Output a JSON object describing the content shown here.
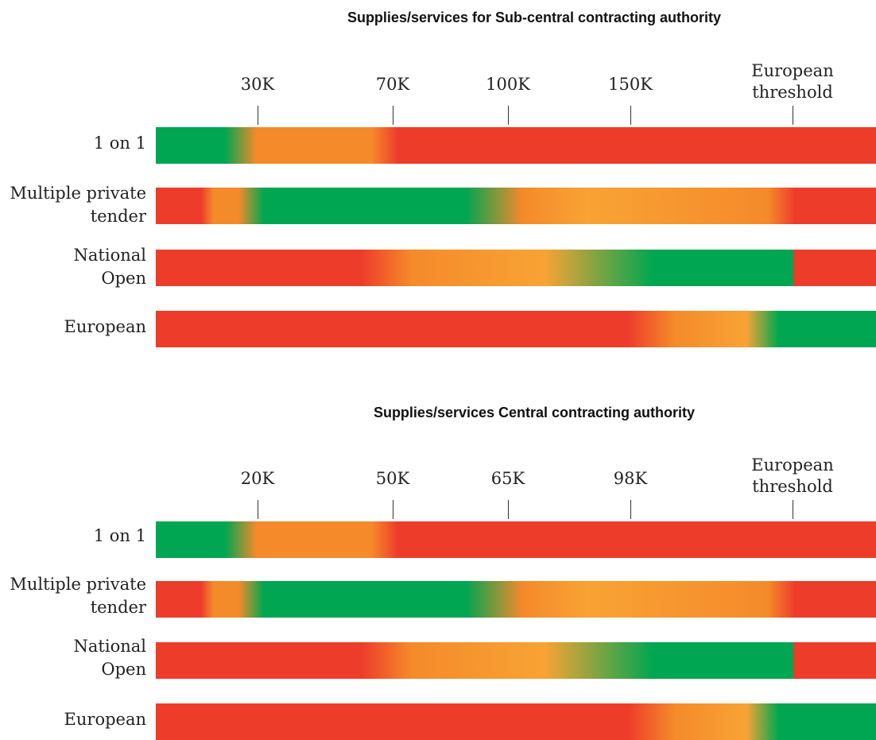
{
  "colors": {
    "red": "#EE3C2B",
    "orange": "#F58A2A",
    "light_orange": "#F8A334",
    "green": "#00A651"
  },
  "panels": [
    {
      "title": "Supplies/services for Sub-central contracting authority",
      "ticks": [
        {
          "label": "30K"
        },
        {
          "label": "70K"
        },
        {
          "label": "100K"
        },
        {
          "label": "150K"
        },
        {
          "label": "European\nthreshold"
        }
      ],
      "rows": [
        {
          "label": "1 on 1"
        },
        {
          "label": "Multiple private\ntender"
        },
        {
          "label": "National\nOpen"
        },
        {
          "label": "European"
        }
      ]
    },
    {
      "title": "Supplies/services Central contracting authority",
      "ticks": [
        {
          "label": "20K"
        },
        {
          "label": "50K"
        },
        {
          "label": "65K"
        },
        {
          "label": "98K"
        },
        {
          "label": "European\nthreshold"
        }
      ],
      "rows": [
        {
          "label": "1 on 1"
        },
        {
          "label": "Multiple private\ntender"
        },
        {
          "label": "National\nOpen"
        },
        {
          "label": "European"
        }
      ]
    }
  ]
}
